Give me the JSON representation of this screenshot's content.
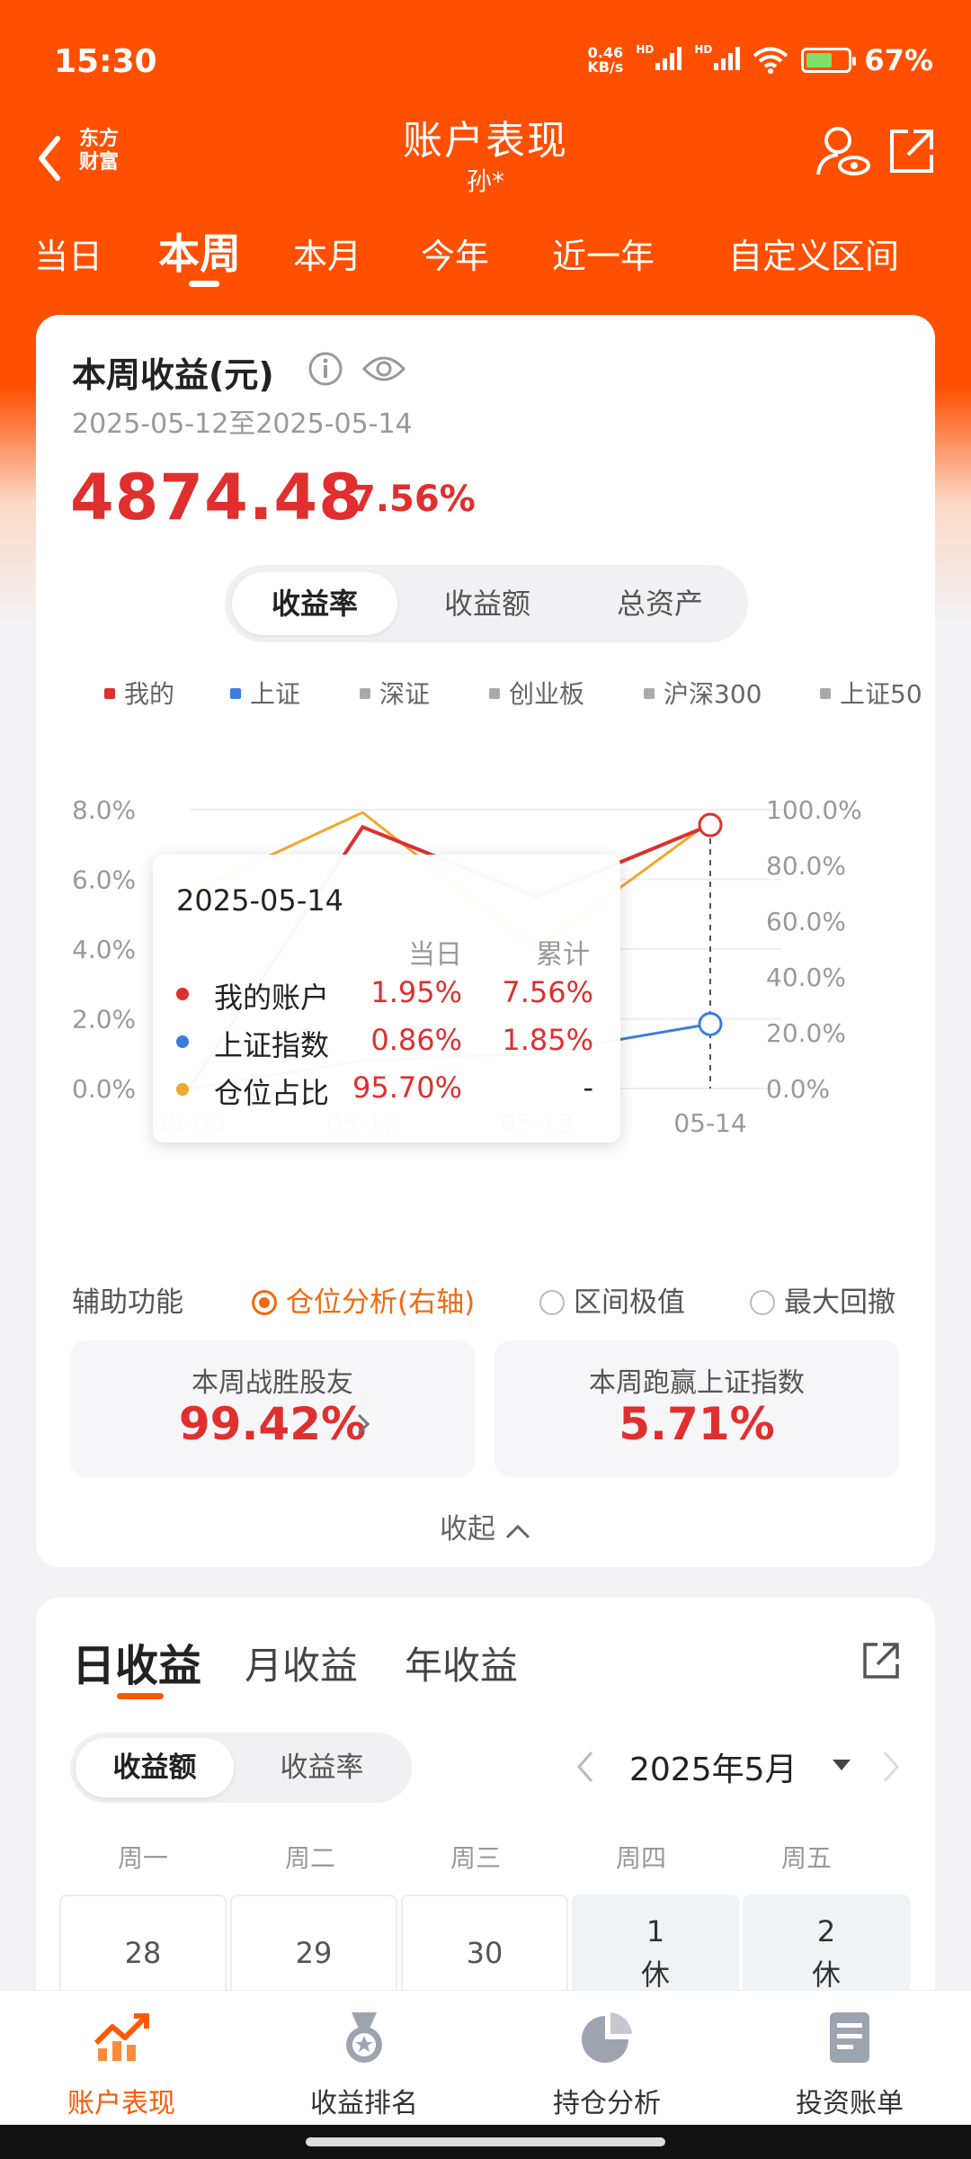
{
  "status": {
    "time": "15:30",
    "net_speed_value": "0.46",
    "net_speed_unit": "KB/s",
    "hd1": "HD",
    "hd2": "HD",
    "battery": "67%"
  },
  "header": {
    "logo_line1": "东方",
    "logo_line2": "财富",
    "title": "账户表现",
    "subtitle": "孙*",
    "tabs": [
      "当日",
      "本周",
      "本月",
      "今年",
      "近一年",
      "自定义区间"
    ],
    "active_tab": 1
  },
  "summary": {
    "title": "本周收益(元)",
    "date_range": "2025-05-12至2025-05-14",
    "amount": "4874.48",
    "percent": "7.56%",
    "segments": [
      "收益率",
      "收益额",
      "总资产"
    ],
    "active_segment": 0
  },
  "legend": [
    {
      "label": "我的",
      "color": "#e02f2f"
    },
    {
      "label": "上证",
      "color": "#3b7ddd"
    },
    {
      "label": "深证",
      "color": "#aaaaaa"
    },
    {
      "label": "创业板",
      "color": "#aaaaaa"
    },
    {
      "label": "沪深300",
      "color": "#aaaaaa"
    },
    {
      "label": "上证50",
      "color": "#aaaaaa"
    }
  ],
  "chart_data": {
    "type": "line",
    "x": [
      "05-09",
      "05-12",
      "05-13",
      "05-14"
    ],
    "y_left_ticks": [
      "0.0%",
      "2.0%",
      "4.0%",
      "6.0%",
      "8.0%"
    ],
    "y_left_range": [
      0,
      8
    ],
    "y_right_ticks": [
      "0.0%",
      "20.0%",
      "40.0%",
      "60.0%",
      "80.0%",
      "100.0%"
    ],
    "y_right_range": [
      0,
      100
    ],
    "series": [
      {
        "name": "我的账户",
        "axis": "left",
        "color": "#e02f2f",
        "values": [
          0.0,
          7.5,
          5.5,
          7.56
        ]
      },
      {
        "name": "上证指数",
        "axis": "left",
        "color": "#3b7ddd",
        "values": [
          0.0,
          0.8,
          1.0,
          1.85
        ]
      },
      {
        "name": "仓位占比",
        "axis": "right",
        "color": "#f0a830",
        "values": [
          70.0,
          99.0,
          50.0,
          95.7
        ]
      }
    ],
    "highlighted_x": "05-14",
    "grid": true
  },
  "tooltip": {
    "date": "2025-05-14",
    "col_day": "当日",
    "col_total": "累计",
    "rows": [
      {
        "name": "我的账户",
        "day": "1.95%",
        "total": "7.56%",
        "color": "#e02f2f"
      },
      {
        "name": "上证指数",
        "day": "0.86%",
        "total": "1.85%",
        "color": "#3b7ddd"
      },
      {
        "name": "仓位占比",
        "day": "95.70%",
        "total": "-",
        "color": "#f0a830"
      }
    ]
  },
  "aux": {
    "label": "辅助功能",
    "options": [
      "仓位分析(右轴)",
      "区间极值",
      "最大回撤"
    ],
    "selected": 0
  },
  "stats": [
    {
      "label": "本周战胜股友",
      "value": "99.42%"
    },
    {
      "label": "本周跑赢上证指数",
      "value": "5.71%"
    }
  ],
  "collapse_label": "收起",
  "profit": {
    "tabs": [
      "日收益",
      "月收益",
      "年收益"
    ],
    "active_tab": 0,
    "segments": [
      "收益额",
      "收益率"
    ],
    "active_segment": 0,
    "month": "2025年5月",
    "weekdays": [
      "周一",
      "周二",
      "周三",
      "周四",
      "周五"
    ],
    "days": [
      {
        "num": "28",
        "note": ""
      },
      {
        "num": "29",
        "note": ""
      },
      {
        "num": "30",
        "note": ""
      },
      {
        "num": "1",
        "note": "休"
      },
      {
        "num": "2",
        "note": "休"
      }
    ]
  },
  "bottom_nav": [
    {
      "label": "账户表现",
      "icon": "trend-chart-icon"
    },
    {
      "label": "收益排名",
      "icon": "medal-icon"
    },
    {
      "label": "持仓分析",
      "icon": "pie-chart-icon"
    },
    {
      "label": "投资账单",
      "icon": "bill-icon"
    }
  ],
  "bottom_active": 0
}
